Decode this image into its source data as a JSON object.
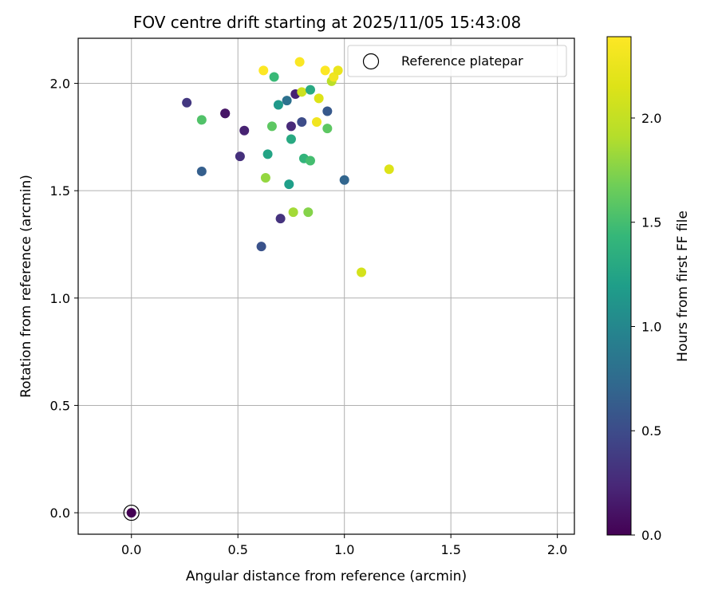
{
  "chart_data": {
    "type": "scatter",
    "title": "FOV centre drift starting at 2025/11/05 15:43:08",
    "xlabel": "Angular distance from reference (arcmin)",
    "ylabel": "Rotation from reference (arcmin)",
    "xlim": [
      -0.25,
      2.08
    ],
    "ylim": [
      -0.1,
      2.21
    ],
    "xticks": [
      0.0,
      0.5,
      1.0,
      1.5,
      2.0
    ],
    "xtick_labels": [
      "0.0",
      "0.5",
      "1.0",
      "1.5",
      "2.0"
    ],
    "yticks": [
      0.0,
      0.5,
      1.0,
      1.5,
      2.0
    ],
    "ytick_labels": [
      "0.0",
      "0.5",
      "1.0",
      "1.5",
      "2.0"
    ],
    "grid": true,
    "legend": {
      "placement": "top-right",
      "entries": [
        "Reference platepar"
      ]
    },
    "colorbar": {
      "label": "Hours from first FF file",
      "colormap": "viridis",
      "range": [
        0.0,
        2.39
      ],
      "ticks": [
        0.0,
        0.5,
        1.0,
        1.5,
        2.0
      ],
      "tick_labels": [
        "0.0",
        "0.5",
        "1.0",
        "1.5",
        "2.0"
      ]
    },
    "reference_point": {
      "x": 0.0,
      "y": 0.0,
      "hours": 0.0,
      "label": "Reference platepar"
    },
    "points": [
      {
        "x": 0.26,
        "y": 1.91,
        "hours": 0.35
      },
      {
        "x": 0.33,
        "y": 1.83,
        "hours": 1.55
      },
      {
        "x": 0.33,
        "y": 1.59,
        "hours": 0.65
      },
      {
        "x": 0.44,
        "y": 1.86,
        "hours": 0.12
      },
      {
        "x": 0.44,
        "y": 1.86,
        "hours": 0.12
      },
      {
        "x": 0.51,
        "y": 1.66,
        "hours": 0.3
      },
      {
        "x": 0.53,
        "y": 1.78,
        "hours": 0.2
      },
      {
        "x": 0.61,
        "y": 1.24,
        "hours": 0.55
      },
      {
        "x": 0.62,
        "y": 2.06,
        "hours": 2.38
      },
      {
        "x": 0.63,
        "y": 1.56,
        "hours": 1.8
      },
      {
        "x": 0.64,
        "y": 1.67,
        "hours": 1.25
      },
      {
        "x": 0.66,
        "y": 1.8,
        "hours": 1.6
      },
      {
        "x": 0.67,
        "y": 2.03,
        "hours": 1.45
      },
      {
        "x": 0.69,
        "y": 1.9,
        "hours": 1.15
      },
      {
        "x": 0.7,
        "y": 1.37,
        "hours": 0.32
      },
      {
        "x": 0.73,
        "y": 1.92,
        "hours": 0.8
      },
      {
        "x": 0.74,
        "y": 1.53,
        "hours": 1.2
      },
      {
        "x": 0.75,
        "y": 1.8,
        "hours": 0.25
      },
      {
        "x": 0.75,
        "y": 1.74,
        "hours": 1.3
      },
      {
        "x": 0.76,
        "y": 1.4,
        "hours": 1.85
      },
      {
        "x": 0.77,
        "y": 1.95,
        "hours": 0.2
      },
      {
        "x": 0.79,
        "y": 2.1,
        "hours": 2.37
      },
      {
        "x": 0.8,
        "y": 1.96,
        "hours": 2.05
      },
      {
        "x": 0.8,
        "y": 1.82,
        "hours": 0.5
      },
      {
        "x": 0.81,
        "y": 1.65,
        "hours": 1.4
      },
      {
        "x": 0.83,
        "y": 1.4,
        "hours": 1.75
      },
      {
        "x": 0.84,
        "y": 1.97,
        "hours": 1.3
      },
      {
        "x": 0.84,
        "y": 1.64,
        "hours": 1.5
      },
      {
        "x": 0.87,
        "y": 1.82,
        "hours": 2.3
      },
      {
        "x": 0.88,
        "y": 1.93,
        "hours": 2.15
      },
      {
        "x": 0.91,
        "y": 2.06,
        "hours": 2.38
      },
      {
        "x": 0.92,
        "y": 1.87,
        "hours": 0.6
      },
      {
        "x": 0.92,
        "y": 1.79,
        "hours": 1.6
      },
      {
        "x": 0.94,
        "y": 2.01,
        "hours": 1.95
      },
      {
        "x": 0.95,
        "y": 2.03,
        "hours": 2.3
      },
      {
        "x": 0.97,
        "y": 2.06,
        "hours": 2.25
      },
      {
        "x": 1.0,
        "y": 1.55,
        "hours": 0.7
      },
      {
        "x": 1.08,
        "y": 1.12,
        "hours": 2.1
      },
      {
        "x": 1.21,
        "y": 1.6,
        "hours": 2.15
      }
    ]
  }
}
